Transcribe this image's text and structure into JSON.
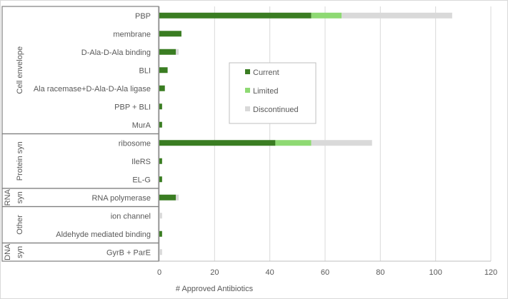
{
  "chart_data": {
    "type": "bar",
    "orientation": "horizontal",
    "stacked": true,
    "xlabel": "# Approved Antibiotics",
    "xlim": [
      0,
      120
    ],
    "xticks": [
      0,
      20,
      40,
      60,
      80,
      100,
      120
    ],
    "grid": true,
    "legend_position": "center",
    "groups": [
      {
        "name": "Cell envelope",
        "lines": [
          "Cell envelope"
        ],
        "categories": [
          "PBP",
          "membrane",
          "D-Ala-D-Ala binding",
          "BLI",
          "Ala racemase+D-Ala-D-Ala ligase",
          "PBP + BLI",
          "MurA"
        ]
      },
      {
        "name": "Protein syn",
        "lines": [
          "Protein syn"
        ],
        "categories": [
          "ribosome",
          "IleRS",
          "EL-G"
        ]
      },
      {
        "name": "RNA syn",
        "lines": [
          "RNA",
          "syn"
        ],
        "categories": [
          "RNA polymerase"
        ]
      },
      {
        "name": "Other",
        "lines": [
          "Other"
        ],
        "categories": [
          "ion channel",
          "Aldehyde mediated binding"
        ]
      },
      {
        "name": "DNA syn",
        "lines": [
          "DNA",
          "syn"
        ],
        "categories": [
          "GyrB + ParE"
        ]
      }
    ],
    "categories": [
      "PBP",
      "membrane",
      "D-Ala-D-Ala binding",
      "BLI",
      "Ala racemase+D-Ala-D-Ala ligase",
      "PBP + BLI",
      "MurA",
      "ribosome",
      "IleRS",
      "EL-G",
      "RNA polymerase",
      "ion channel",
      "Aldehyde mediated binding",
      "GyrB + ParE"
    ],
    "series": [
      {
        "name": "Current",
        "color": "#3a7d22",
        "values": [
          55,
          8,
          6,
          3,
          2,
          1,
          1,
          42,
          1,
          1,
          6,
          0,
          1,
          0
        ]
      },
      {
        "name": "Limited",
        "color": "#8ed973",
        "values": [
          11,
          0,
          0,
          0,
          0,
          0,
          0,
          13,
          0,
          0,
          0,
          0,
          0,
          0
        ]
      },
      {
        "name": "Discontinued",
        "color": "#d9d9d9",
        "values": [
          40,
          0,
          1,
          0,
          0,
          0,
          0,
          22,
          0,
          0,
          1,
          1,
          0,
          1
        ]
      }
    ]
  }
}
